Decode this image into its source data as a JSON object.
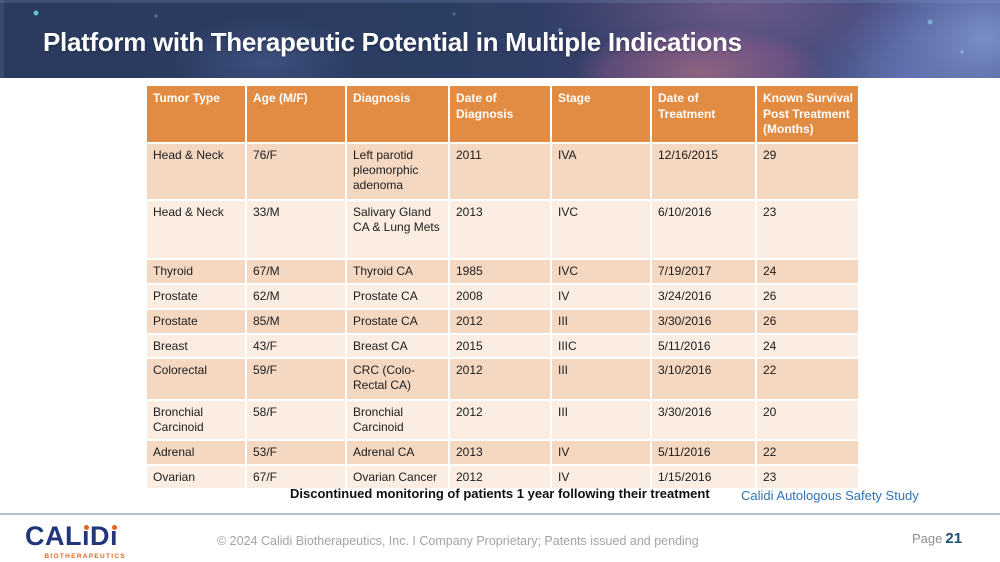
{
  "slide": {
    "title": "Platform with Therapeutic Potential in Multiple Indications"
  },
  "table": {
    "columns": [
      "Tumor Type",
      "Age (M/F)",
      "Diagnosis",
      "Date of Diagnosis",
      "Stage",
      "Date of Treatment",
      "Known Survival Post Treatment (Months)"
    ],
    "rows": [
      [
        "Head & Neck",
        "76/F",
        "Left parotid pleomorphic adenoma",
        "2011",
        "IVA",
        "12/16/2015",
        "29"
      ],
      [
        "Head & Neck",
        "33/M",
        "Salivary Gland CA & Lung Mets",
        "2013",
        "IVC",
        "6/10/2016",
        "23"
      ],
      [
        "Thyroid",
        "67/M",
        "Thyroid CA",
        "1985",
        "IVC",
        "7/19/2017",
        "24"
      ],
      [
        "Prostate",
        "62/M",
        "Prostate CA",
        "2008",
        "IV",
        "3/24/2016",
        "26"
      ],
      [
        "Prostate",
        "85/M",
        "Prostate CA",
        "2012",
        "III",
        "3/30/2016",
        "26"
      ],
      [
        "Breast",
        "43/F",
        "Breast CA",
        "2015",
        "IIIC",
        "5/11/2016",
        "24"
      ],
      [
        "Colorectal",
        "59/F",
        "CRC (Colo-Rectal CA)",
        "2012",
        "III",
        "3/10/2016",
        "22"
      ],
      [
        "Bronchial Carcinoid",
        "58/F",
        "Bronchial Carcinoid",
        "2012",
        "III",
        "3/30/2016",
        "20"
      ],
      [
        "Adrenal",
        "53/F",
        "Adrenal CA",
        "2013",
        "IV",
        "5/11/2016",
        "22"
      ],
      [
        "Ovarian",
        "67/F",
        "Ovarian Cancer",
        "2012",
        "IV",
        "1/15/2016",
        "23"
      ]
    ]
  },
  "notes": {
    "monitoring": "Discontinued monitoring of patients 1 year following their treatment",
    "study": "Calidi Autologous Safety Study"
  },
  "footer": {
    "logo_text": "CALiDi",
    "logo_subtitle": "BIOTHERAPEUTICS",
    "copyright": "© 2024 Calidi Biotherapeutics, Inc. I  Company Proprietary; Patents issued and pending",
    "page_label": "Page",
    "page_number": "21"
  },
  "colors": {
    "banner_bg": "#2b3a5e",
    "header_orange": "#e28b42",
    "row_dark": "#f5d8c2",
    "row_light": "#fbede2",
    "study_blue": "#2e74b5",
    "logo_navy": "#21357a",
    "logo_orange": "#e2641f",
    "page_navy": "#1f4e79"
  }
}
